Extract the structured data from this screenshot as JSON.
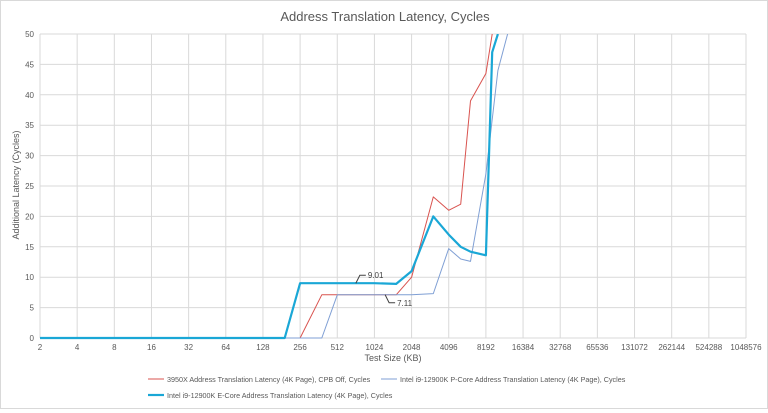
{
  "chart_data": {
    "type": "line",
    "title": "Address Translation Latency, Cycles",
    "xlabel": "Test Size (KB)",
    "ylabel": "Additional Latency (Cycles)",
    "x_scale": "log2",
    "x_ticks": [
      2,
      4,
      8,
      16,
      32,
      64,
      128,
      256,
      512,
      1024,
      2048,
      4096,
      8192,
      16384,
      32768,
      65536,
      131072,
      262144,
      524288,
      1048576
    ],
    "xlim": [
      2,
      1048576
    ],
    "ylim": [
      0,
      50
    ],
    "y_ticks": [
      0,
      5,
      10,
      15,
      20,
      25,
      30,
      35,
      40,
      45,
      50
    ],
    "grid": true,
    "legend_position": "bottom",
    "series": [
      {
        "name": "3950X Address Translation Latency (4K Page), CPB Off, Cycles",
        "color": "#d9534f",
        "line": "thin",
        "points": [
          [
            2,
            0
          ],
          [
            128,
            0
          ],
          [
            256,
            0
          ],
          [
            384,
            7.1
          ],
          [
            512,
            7.1
          ],
          [
            1024,
            7.1
          ],
          [
            1536,
            7.11
          ],
          [
            2048,
            10
          ],
          [
            3072,
            23.2
          ],
          [
            4096,
            21
          ],
          [
            5120,
            22
          ],
          [
            6144,
            39
          ],
          [
            8192,
            43.5
          ],
          [
            9216,
            50
          ]
        ]
      },
      {
        "name": "Intel i9-12900K P-Core Address Translation Latency (4K Page), Cycles",
        "color": "#7f9fd4",
        "line": "thin",
        "points": [
          [
            2,
            0
          ],
          [
            128,
            0
          ],
          [
            256,
            0
          ],
          [
            384,
            0
          ],
          [
            512,
            7.1
          ],
          [
            1024,
            7.1
          ],
          [
            2048,
            7.1
          ],
          [
            3072,
            7.3
          ],
          [
            4096,
            14.7
          ],
          [
            5120,
            13
          ],
          [
            6144,
            12.6
          ],
          [
            8192,
            27
          ],
          [
            10240,
            44
          ],
          [
            12288,
            50
          ]
        ]
      },
      {
        "name": "Intel i9-12900K E-Core Address Translation Latency (4K Page), Cycles",
        "color": "#1aa7d6",
        "line": "thick",
        "points": [
          [
            2,
            0
          ],
          [
            128,
            0
          ],
          [
            192,
            0
          ],
          [
            256,
            9.01
          ],
          [
            512,
            9.01
          ],
          [
            1024,
            9.01
          ],
          [
            1536,
            8.9
          ],
          [
            2048,
            11
          ],
          [
            3072,
            20
          ],
          [
            4096,
            17
          ],
          [
            5120,
            15
          ],
          [
            6144,
            14.2
          ],
          [
            8192,
            13.6
          ],
          [
            9216,
            47
          ],
          [
            10240,
            50
          ]
        ]
      }
    ],
    "annotations": [
      {
        "text": "9.01",
        "x": 724,
        "y": 9.01
      },
      {
        "text": "7.11",
        "x": 1250,
        "y": 7.11
      }
    ]
  }
}
